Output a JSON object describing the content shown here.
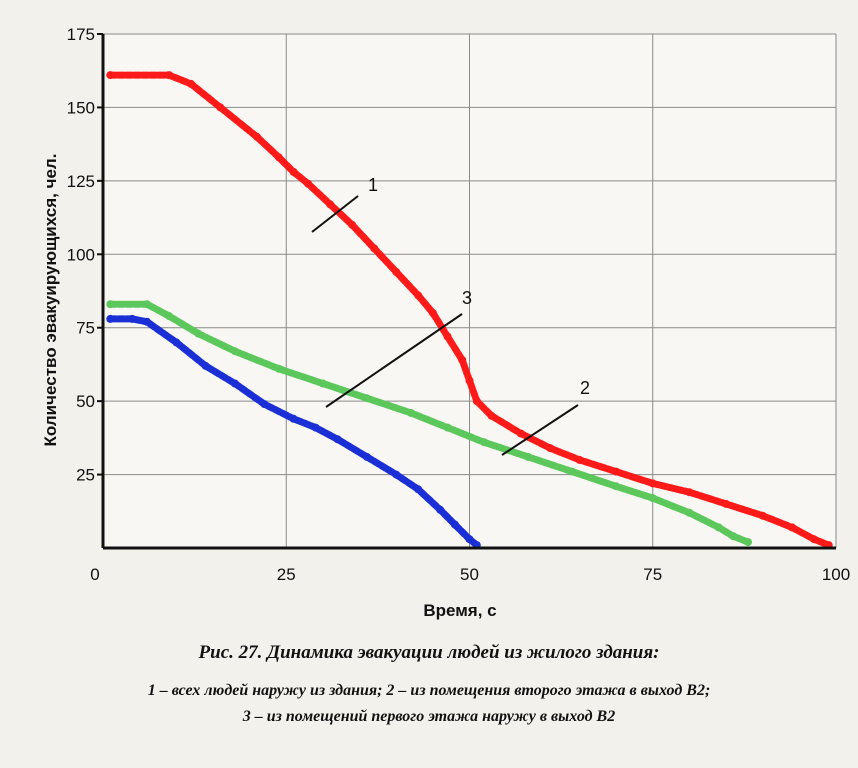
{
  "chart_data": {
    "type": "line",
    "xlabel": "Время, с",
    "ylabel": "Количество эвакуирующихся, чел.",
    "xlim": [
      0,
      100
    ],
    "ylim": [
      0,
      175
    ],
    "x_ticks": [
      "0",
      "25",
      "50",
      "75",
      "100"
    ],
    "y_ticks": [
      "25",
      "50",
      "75",
      "100",
      "125",
      "150",
      "175"
    ],
    "grid": true,
    "series": [
      {
        "name": "1",
        "color": "#ff1a1a",
        "points": [
          [
            1,
            161
          ],
          [
            9,
            161
          ],
          [
            12,
            158
          ],
          [
            16,
            150
          ],
          [
            21,
            140
          ],
          [
            24,
            133
          ],
          [
            26,
            128
          ],
          [
            28,
            124
          ],
          [
            31,
            117
          ],
          [
            34,
            110
          ],
          [
            37,
            102
          ],
          [
            40,
            94
          ],
          [
            43,
            86
          ],
          [
            45,
            80
          ],
          [
            47,
            72
          ],
          [
            49,
            64
          ],
          [
            50,
            57
          ],
          [
            51,
            50
          ],
          [
            53,
            45
          ],
          [
            57,
            39
          ],
          [
            61,
            34
          ],
          [
            65,
            30
          ],
          [
            70,
            26
          ],
          [
            75,
            22
          ],
          [
            80,
            19
          ],
          [
            85,
            15
          ],
          [
            90,
            11
          ],
          [
            94,
            7
          ],
          [
            97,
            3
          ],
          [
            99,
            1
          ]
        ]
      },
      {
        "name": "2",
        "color": "#5cc85c",
        "points": [
          [
            1,
            83
          ],
          [
            6,
            83
          ],
          [
            9,
            79
          ],
          [
            13,
            73
          ],
          [
            18,
            67
          ],
          [
            24,
            61
          ],
          [
            30,
            56
          ],
          [
            36,
            51
          ],
          [
            42,
            46
          ],
          [
            47,
            41
          ],
          [
            52,
            36
          ],
          [
            58,
            31
          ],
          [
            64,
            26
          ],
          [
            70,
            21
          ],
          [
            75,
            17
          ],
          [
            80,
            12
          ],
          [
            84,
            7
          ],
          [
            86,
            4
          ],
          [
            88,
            2
          ]
        ]
      },
      {
        "name": "3",
        "color": "#1a2fd6",
        "points": [
          [
            1,
            78
          ],
          [
            4,
            78
          ],
          [
            6,
            77
          ],
          [
            10,
            70
          ],
          [
            14,
            62
          ],
          [
            18,
            56
          ],
          [
            22,
            49
          ],
          [
            26,
            44
          ],
          [
            29,
            41
          ],
          [
            32,
            37
          ],
          [
            36,
            31
          ],
          [
            40,
            25
          ],
          [
            43,
            20
          ],
          [
            46,
            13
          ],
          [
            48,
            8
          ],
          [
            50,
            3
          ],
          [
            51,
            1
          ]
        ]
      }
    ],
    "annotations": [
      "1",
      "2",
      "3"
    ]
  },
  "caption": {
    "title": "Рис. 27. Динамика эвакуации людей из жилого здания:",
    "line1": "1 – всех людей наружу из здания; 2 – из помещения второго этажа в выход В2;",
    "line2": "3 – из помещений первого этажа наружу в выход В2"
  }
}
